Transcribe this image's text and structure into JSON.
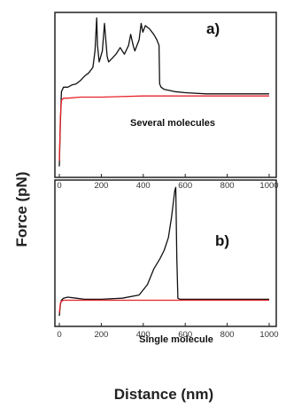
{
  "figure": {
    "ylabel": "Force (pN)",
    "xlabel": "Distance (nm)"
  },
  "colors": {
    "approach": "#e8232a",
    "retract": "#111111"
  },
  "chart_data": [
    {
      "type": "line",
      "panel_label": "a)",
      "annotation": "Several molecules",
      "xlim": [
        0,
        1000
      ],
      "x_ticks": [
        "0",
        "200",
        "400",
        "600",
        "800",
        "1000"
      ],
      "yticks_shown": false,
      "series": [
        {
          "color": "#111111",
          "x": [
            0,
            5,
            10,
            20,
            40,
            60,
            80,
            100,
            120,
            140,
            160,
            170,
            178,
            182,
            190,
            205,
            215,
            228,
            235,
            250,
            270,
            290,
            310,
            330,
            340,
            352,
            360,
            380,
            390,
            398,
            410,
            430,
            450,
            465,
            475,
            478,
            485,
            500,
            550,
            600,
            700,
            800,
            900,
            1000
          ],
          "y": [
            -60,
            -20,
            8,
            12,
            12,
            14,
            15,
            18,
            22,
            25,
            30,
            45,
            75,
            50,
            35,
            45,
            70,
            40,
            35,
            38,
            42,
            48,
            42,
            50,
            60,
            50,
            45,
            55,
            70,
            62,
            68,
            65,
            60,
            55,
            50,
            15,
            12,
            10,
            8,
            7,
            6,
            6,
            6,
            6
          ]
        },
        {
          "color": "#e8232a",
          "x": [
            0,
            5,
            10,
            20,
            40,
            100,
            200,
            400,
            600,
            800,
            1000
          ],
          "y": [
            -55,
            -15,
            0,
            2,
            2,
            3,
            3,
            4,
            4,
            4,
            4
          ]
        }
      ]
    },
    {
      "type": "line",
      "panel_label": "b)",
      "annotation": "Single molecule",
      "xlim": [
        0,
        1000
      ],
      "x_ticks": [
        "0",
        "200",
        "400",
        "600",
        "800",
        "1000"
      ],
      "yticks_shown": false,
      "series": [
        {
          "color": "#111111",
          "x": [
            0,
            5,
            10,
            20,
            40,
            80,
            120,
            200,
            300,
            380,
            420,
            450,
            480,
            500,
            520,
            535,
            550,
            555,
            560,
            565,
            575,
            600,
            700,
            800,
            900,
            1000
          ],
          "y": [
            -15,
            -4,
            0,
            2,
            3,
            2,
            1,
            1,
            2,
            5,
            15,
            30,
            40,
            48,
            60,
            80,
            105,
            108,
            40,
            2,
            1,
            1,
            1,
            1,
            1,
            1
          ]
        },
        {
          "color": "#e8232a",
          "x": [
            0,
            5,
            10,
            20,
            40,
            100,
            200,
            400,
            600,
            800,
            1000
          ],
          "y": [
            -12,
            -3,
            -1,
            0,
            0,
            0,
            0,
            0,
            0,
            0,
            0
          ]
        }
      ]
    }
  ]
}
